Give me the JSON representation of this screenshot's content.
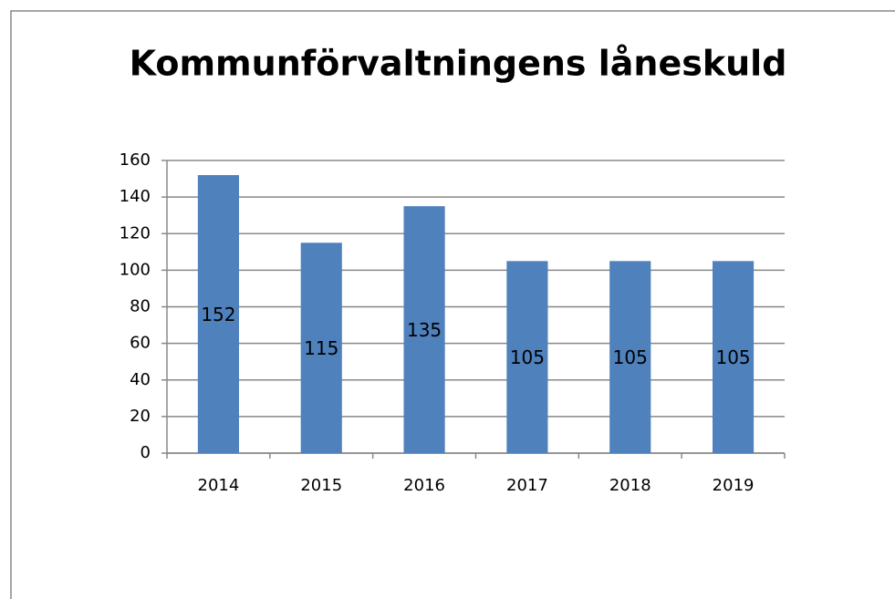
{
  "chart_data": {
    "type": "bar",
    "title": "Kommunförvaltningens låneskuld",
    "categories": [
      "2014",
      "2015",
      "2016",
      "2017",
      "2018",
      "2019"
    ],
    "values": [
      152,
      115,
      135,
      105,
      105,
      105
    ],
    "color": "#4f81bd",
    "ylim": [
      0,
      160
    ],
    "yticks": [
      0,
      20,
      40,
      60,
      80,
      100,
      120,
      140,
      160
    ],
    "grid": true,
    "data_labels": true
  }
}
